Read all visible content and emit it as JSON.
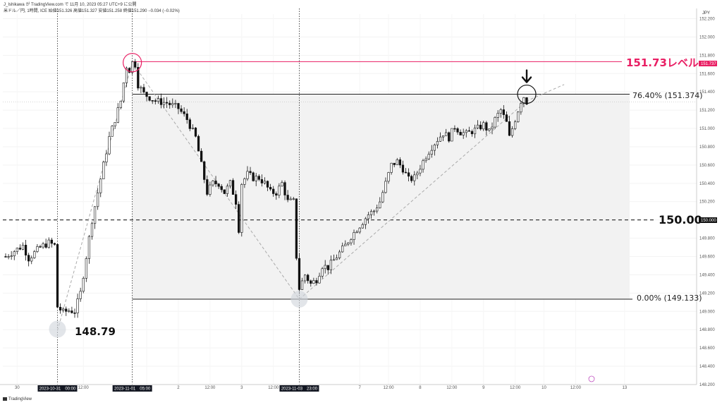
{
  "header": {
    "publisher": "J_Ishikawa が TradingView.com で 11月 10, 2023 05:27 UTC+9 に公開",
    "symbol_line": "米ドル／円, 1時間, ICE  始値151.326  高値151.327  安値151.258  終値151.290  −0.034 (−0.02%)"
  },
  "currency_label": "JPY",
  "footer": {
    "brand": "TradingView"
  },
  "colors": {
    "accent": "#e91e63",
    "up": "#ffffff",
    "down": "#111111",
    "fib_fill": "#f2f2f2"
  },
  "chart_data": {
    "type": "candlestick",
    "ylim": [
      148.2,
      152.25
    ],
    "xlim": [
      0,
      205
    ],
    "price_ticks": [
      "152.200",
      "152.000",
      "151.800",
      "151.600",
      "151.400",
      "151.200",
      "151.000",
      "150.800",
      "150.600",
      "150.400",
      "150.200",
      "150.000",
      "149.800",
      "149.600",
      "149.400",
      "149.200",
      "149.000",
      "148.800",
      "148.600",
      "148.400",
      "148.200"
    ],
    "time_ticks": [
      {
        "label": "30",
        "x": 4
      },
      {
        "label": "12:00",
        "x": 27
      },
      {
        "label": "12:00",
        "x": 49
      },
      {
        "label": "2",
        "x": 60
      },
      {
        "label": "12:00",
        "x": 71
      },
      {
        "label": "3",
        "x": 82
      },
      {
        "label": "12:00",
        "x": 93
      },
      {
        "label": "7",
        "x": 123
      },
      {
        "label": "12:00",
        "x": 133
      },
      {
        "label": "8",
        "x": 144
      },
      {
        "label": "12:00",
        "x": 155
      },
      {
        "label": "9",
        "x": 166
      },
      {
        "label": "12:00",
        "x": 177
      },
      {
        "label": "10",
        "x": 187
      },
      {
        "label": "12:00",
        "x": 198
      },
      {
        "label": "13",
        "x": 215
      }
    ],
    "highlighted_times": [
      {
        "label": "2023-10-31　00:00",
        "x": 18
      },
      {
        "label": "2023-11-01　05:00",
        "x": 44
      },
      {
        "label": "2023-11-03　23:00",
        "x": 102
      }
    ],
    "levels": {
      "level_151_73": {
        "price": 151.73,
        "label": "151.73レベル",
        "badge": "151.737"
      },
      "level_150": {
        "price": 150.0,
        "label": "150.00",
        "badge": "150.000"
      },
      "fib_0764": {
        "price": 151.374,
        "label": "76.40% (151.374)"
      },
      "fib_0": {
        "price": 149.133,
        "label": "0.00% (149.133)"
      }
    },
    "annotations": {
      "low_label": "148.79"
    },
    "path": [
      [
        0,
        149.6
      ],
      [
        6,
        149.72
      ],
      [
        8,
        149.58
      ],
      [
        12,
        149.7
      ],
      [
        15,
        149.75
      ],
      [
        17,
        149.72
      ],
      [
        18,
        149.05
      ],
      [
        20,
        148.99
      ],
      [
        22,
        149.01
      ],
      [
        24,
        149.0
      ],
      [
        26,
        149.2
      ],
      [
        28,
        149.6
      ],
      [
        30,
        150.0
      ],
      [
        32,
        150.3
      ],
      [
        34,
        150.6
      ],
      [
        36,
        150.9
      ],
      [
        38,
        151.1
      ],
      [
        40,
        151.3
      ],
      [
        41,
        151.5
      ],
      [
        42,
        151.68
      ],
      [
        43,
        151.64
      ],
      [
        44,
        151.72
      ],
      [
        45,
        151.7
      ],
      [
        46,
        151.48
      ],
      [
        48,
        151.38
      ],
      [
        52,
        151.3
      ],
      [
        56,
        151.28
      ],
      [
        60,
        151.22
      ],
      [
        63,
        151.1
      ],
      [
        66,
        150.9
      ],
      [
        68,
        150.6
      ],
      [
        70,
        150.3
      ],
      [
        72,
        150.4
      ],
      [
        74,
        150.4
      ],
      [
        76,
        150.3
      ],
      [
        78,
        150.4
      ],
      [
        80,
        150.2
      ],
      [
        81,
        149.9
      ],
      [
        82,
        150.4
      ],
      [
        84,
        150.5
      ],
      [
        86,
        150.46
      ],
      [
        88,
        150.46
      ],
      [
        90,
        150.4
      ],
      [
        92,
        150.3
      ],
      [
        94,
        150.3
      ],
      [
        96,
        150.4
      ],
      [
        98,
        150.2
      ],
      [
        100,
        150.2
      ],
      [
        101,
        149.6
      ],
      [
        102,
        149.25
      ],
      [
        104,
        149.4
      ],
      [
        106,
        149.3
      ],
      [
        108,
        149.35
      ],
      [
        110,
        149.5
      ],
      [
        112,
        149.48
      ],
      [
        114,
        149.56
      ],
      [
        116,
        149.64
      ],
      [
        118,
        149.72
      ],
      [
        120,
        149.82
      ],
      [
        122,
        149.9
      ],
      [
        124,
        149.98
      ],
      [
        126,
        150.06
      ],
      [
        128,
        150.1
      ],
      [
        130,
        150.2
      ],
      [
        132,
        150.4
      ],
      [
        134,
        150.6
      ],
      [
        136,
        150.64
      ],
      [
        138,
        150.56
      ],
      [
        140,
        150.44
      ],
      [
        142,
        150.46
      ],
      [
        144,
        150.58
      ],
      [
        146,
        150.7
      ],
      [
        148,
        150.8
      ],
      [
        150,
        150.88
      ],
      [
        152,
        150.95
      ],
      [
        154,
        150.9
      ],
      [
        156,
        151.02
      ],
      [
        158,
        150.96
      ],
      [
        160,
        150.94
      ],
      [
        162,
        150.97
      ],
      [
        164,
        151.0
      ],
      [
        166,
        151.04
      ],
      [
        168,
        150.96
      ],
      [
        170,
        151.1
      ],
      [
        172,
        151.2
      ],
      [
        174,
        151.06
      ],
      [
        175,
        150.9
      ],
      [
        176,
        151.0
      ],
      [
        177,
        151.1
      ],
      [
        178,
        151.2
      ],
      [
        179,
        151.3
      ],
      [
        180,
        151.35
      ],
      [
        181,
        151.29
      ]
    ]
  }
}
